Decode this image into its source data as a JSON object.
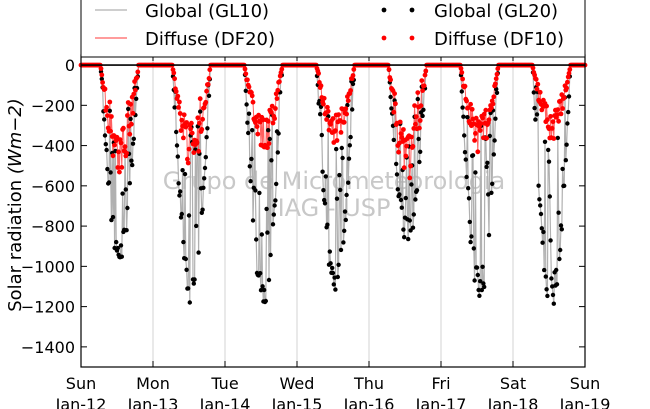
{
  "chart_data": {
    "type": "scatter",
    "ylabel": "Solar radiation (Wm-2)",
    "ylabel_parts": {
      "main": "Solar radiation",
      "units": "(Wm−2)"
    },
    "ylim": [
      -1500,
      50
    ],
    "yticks": [
      0,
      -200,
      -400,
      -600,
      -800,
      -1000,
      -1200,
      -1400
    ],
    "ytick_labels": [
      "0",
      "−200",
      "−400",
      "−600",
      "−800",
      "−1000",
      "−1200",
      "−1400"
    ],
    "x_start": "2014-01-12",
    "x_end": "2014-01-19",
    "xticks": [
      {
        "day": "Sun",
        "date": "Jan-12"
      },
      {
        "day": "Mon",
        "date": "Jan-13"
      },
      {
        "day": "Tue",
        "date": "Jan-14"
      },
      {
        "day": "Wed",
        "date": "Jan-15"
      },
      {
        "day": "Thu",
        "date": "Jan-16"
      },
      {
        "day": "Fri",
        "date": "Jan-17"
      },
      {
        "day": "Sat",
        "date": "Jan-18"
      },
      {
        "day": "Sun",
        "date": "Jan-19"
      }
    ],
    "grid": "vertical",
    "legend_placement": "top",
    "watermark": [
      "Grupo de Micrometeorologia",
      "IAG - USP"
    ],
    "series": [
      {
        "name": "Global (GL10)",
        "style": "line",
        "color": "#b0b0b0"
      },
      {
        "name": "Diffuse (DF20)",
        "style": "line",
        "color": "#ff6060"
      },
      {
        "name": "Global (GL20)",
        "style": "dots",
        "color": "#000000"
      },
      {
        "name": "Diffuse (DF10)",
        "style": "dots",
        "color": "#ff0000"
      }
    ],
    "daily_minima": [
      {
        "date": "2014-01-12",
        "global": -1000,
        "diffuse": -520
      },
      {
        "date": "2014-01-13",
        "global": -1210,
        "diffuse": -490
      },
      {
        "date": "2014-01-14",
        "global": -1210,
        "diffuse": -420
      },
      {
        "date": "2014-01-15",
        "global": -1180,
        "diffuse": -380
      },
      {
        "date": "2014-01-16",
        "global": -900,
        "diffuse": -560
      },
      {
        "date": "2014-01-17",
        "global": -1200,
        "diffuse": -420
      },
      {
        "date": "2014-01-18",
        "global": -1240,
        "diffuse": -360
      }
    ]
  }
}
